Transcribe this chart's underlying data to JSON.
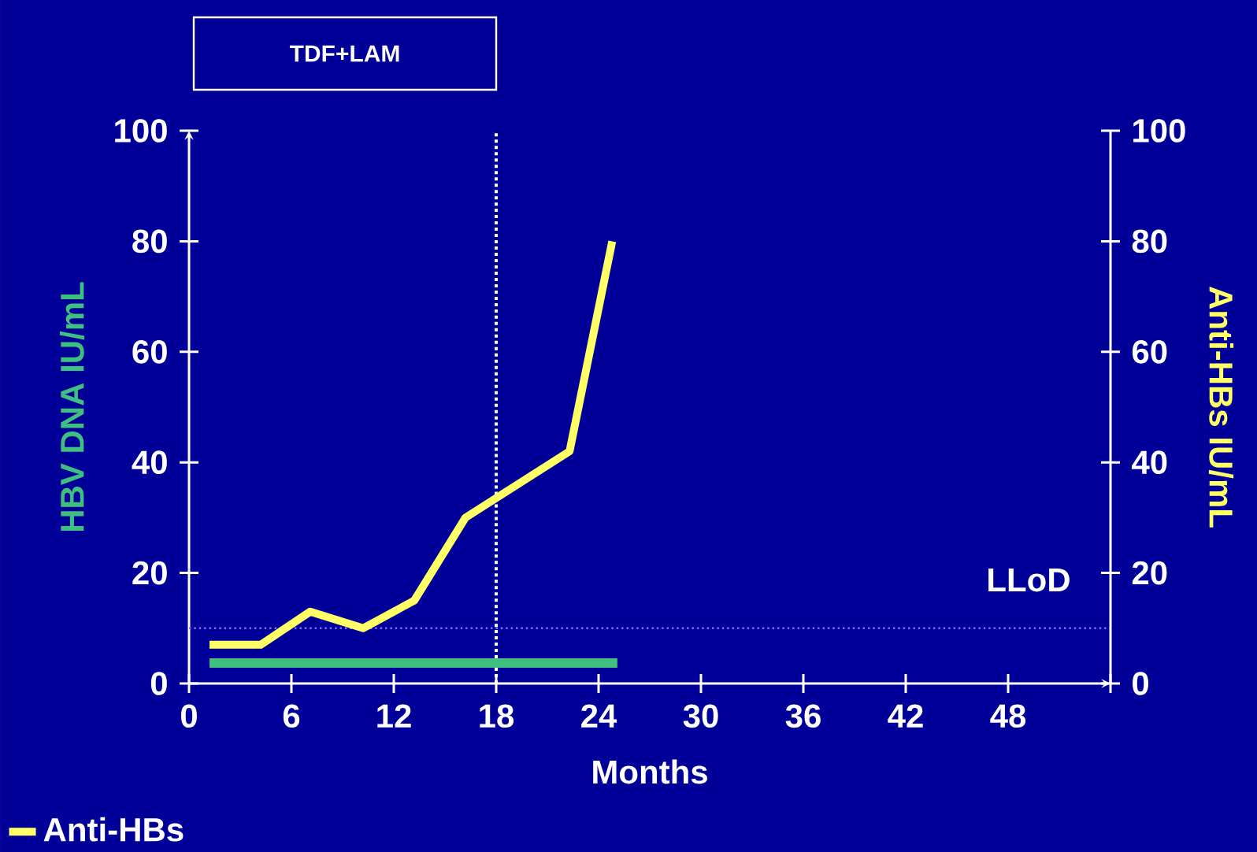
{
  "chart_data": {
    "type": "line",
    "xlabel": "Months",
    "ylabel": "HBV DNA IU/mL",
    "y2label": "Anti-HBs IU/mL",
    "annotations": [
      "TDF+LAM"
    ],
    "xlim": [
      0,
      54
    ],
    "xticks": [
      0,
      6,
      12,
      18,
      24,
      30,
      36,
      42,
      48,
      {
        "value": 54,
        "label": null
      }
    ],
    "ylim": [
      0,
      100
    ],
    "yticks": [
      0,
      20,
      40,
      60,
      80,
      100
    ],
    "y2lim": [
      0,
      100
    ],
    "y2ticks": [
      0,
      20,
      40,
      60,
      80,
      100
    ],
    "series": [
      {
        "color": "#40c080",
        "x": [
          1.2,
          25.1
        ],
        "values": [
          3.7,
          3.7
        ]
      },
      {
        "name": "Anti-HBs",
        "color": "#ffff66",
        "axis": "y2",
        "x": [
          1.2,
          4.2,
          7.1,
          10.2,
          13.2,
          16.2,
          22.3,
          24.8
        ],
        "values": [
          7,
          7,
          13,
          10,
          15,
          30,
          42,
          80
        ]
      }
    ],
    "ref_lines": [
      {
        "axis": "y",
        "value": 10,
        "label": "LLoD",
        "color": "#8c6cff",
        "line_style": "dotted"
      },
      {
        "axis": "x",
        "value": 18,
        "color": "#ffffff",
        "line_style": "dotted"
      }
    ],
    "legend": "bottom left",
    "grid": false,
    "marker": "none",
    "line_style": "solid"
  }
}
